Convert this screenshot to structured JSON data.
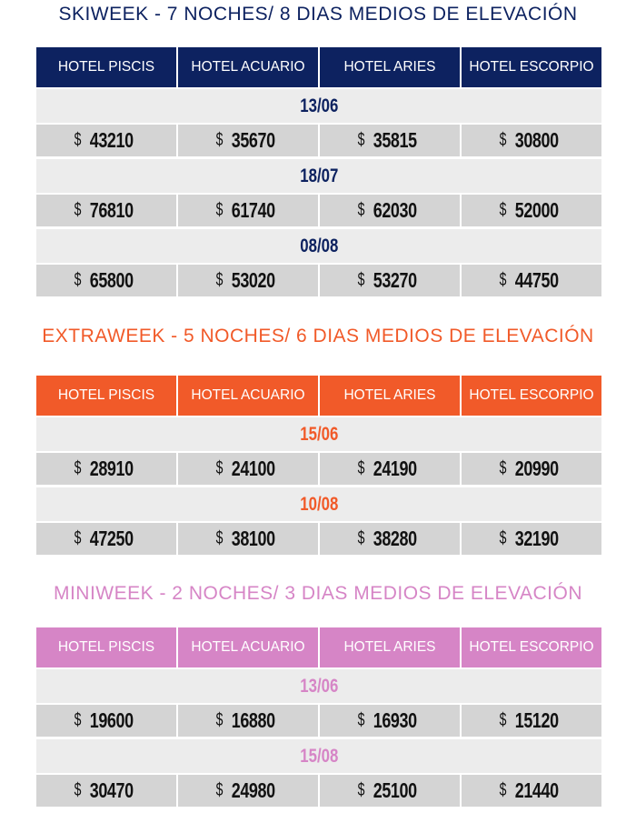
{
  "sections": [
    {
      "title": "SKIWEEK - 7 NOCHES/ 8 DIAS MEDIOS DE ELEVACIÓN",
      "color": "#0d2260",
      "headers": [
        "HOTEL PISCIS",
        "HOTEL ACUARIO",
        "HOTEL ARIES",
        "HOTEL ESCORPIO"
      ],
      "rows": [
        {
          "date": "13/06",
          "prices": [
            "43210",
            "35670",
            "35815",
            "30800"
          ]
        },
        {
          "date": "18/07",
          "prices": [
            "76810",
            "61740",
            "62030",
            "52000"
          ]
        },
        {
          "date": "08/08",
          "prices": [
            "65800",
            "53020",
            "53270",
            "44750"
          ]
        }
      ]
    },
    {
      "title": "EXTRAWEEK - 5 NOCHES/ 6 DIAS MEDIOS DE ELEVACIÓN",
      "color": "#f15a29",
      "headers": [
        "HOTEL PISCIS",
        "HOTEL ACUARIO",
        "HOTEL ARIES",
        "HOTEL ESCORPIO"
      ],
      "rows": [
        {
          "date": "15/06",
          "prices": [
            "28910",
            "24100",
            "24190",
            "20990"
          ]
        },
        {
          "date": "10/08",
          "prices": [
            "47250",
            "38100",
            "38280",
            "32190"
          ]
        }
      ]
    },
    {
      "title": "MINIWEEK - 2 NOCHES/ 3 DIAS MEDIOS DE ELEVACIÓN",
      "color": "#d685c6",
      "headers": [
        "HOTEL PISCIS",
        "HOTEL ACUARIO",
        "HOTEL ARIES",
        "HOTEL ESCORPIO"
      ],
      "rows": [
        {
          "date": "13/06",
          "prices": [
            "19600",
            "16880",
            "16930",
            "15120"
          ]
        },
        {
          "date": "15/08",
          "prices": [
            "30470",
            "24980",
            "25100",
            "21440"
          ]
        }
      ]
    }
  ],
  "currency": "$"
}
